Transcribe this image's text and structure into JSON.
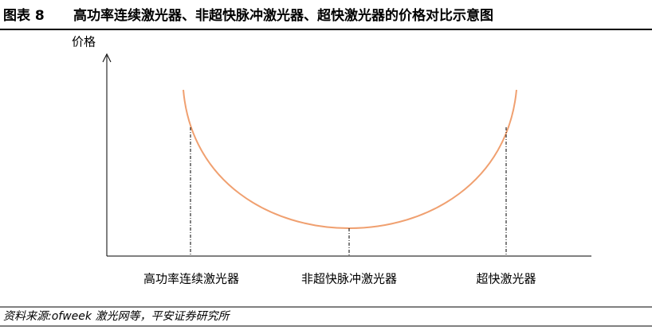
{
  "header": {
    "figure_label": "图表 8",
    "title": "高功率连续激光器、非超快脉冲激光器、超快激光器的价格对比示意图"
  },
  "diagram": {
    "y_axis_label": "价格",
    "categories": [
      "高功率连续激光器",
      "非超快脉冲激光器",
      "超快激光器"
    ]
  },
  "footer": {
    "source": "资料来源:ofweek 激光网等，平安证券研究所"
  }
}
